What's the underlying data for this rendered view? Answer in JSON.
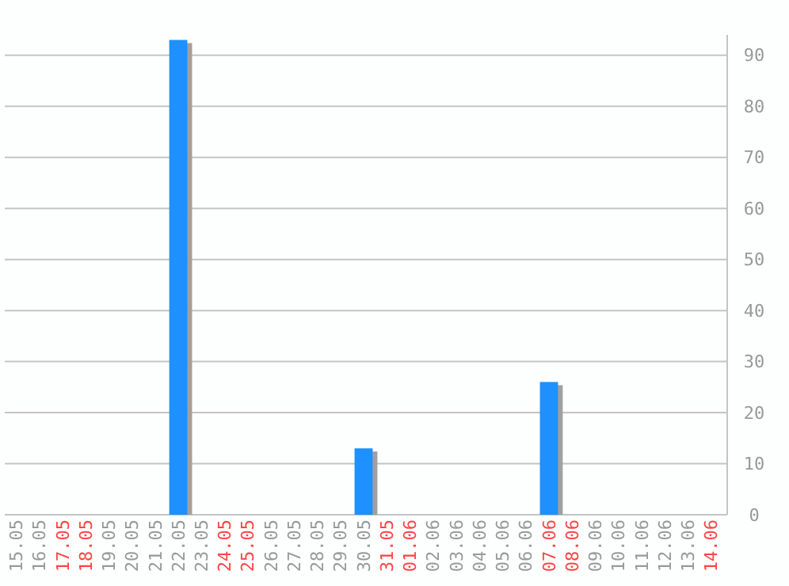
{
  "chart_data": {
    "type": "bar",
    "categories": [
      "15.05",
      "16.05",
      "17.05",
      "18.05",
      "19.05",
      "20.05",
      "21.05",
      "22.05",
      "23.05",
      "24.05",
      "25.05",
      "26.05",
      "27.05",
      "28.05",
      "29.05",
      "30.05",
      "31.05",
      "01.06",
      "02.06",
      "03.06",
      "04.06",
      "05.06",
      "06.06",
      "07.06",
      "08.06",
      "09.06",
      "10.06",
      "11.06",
      "12.06",
      "13.06",
      "14.06"
    ],
    "values": [
      0,
      0,
      0,
      0,
      0,
      0,
      0,
      93,
      0,
      0,
      0,
      0,
      0,
      0,
      0,
      13,
      0,
      0,
      0,
      0,
      0,
      0,
      0,
      26,
      0,
      0,
      0,
      0,
      0,
      0,
      0
    ],
    "color": "#1e90ff",
    "ylim": [
      0,
      94
    ],
    "yticks": [
      0,
      10,
      20,
      30,
      40,
      50,
      60,
      70,
      80,
      90
    ],
    "grid": "y"
  }
}
